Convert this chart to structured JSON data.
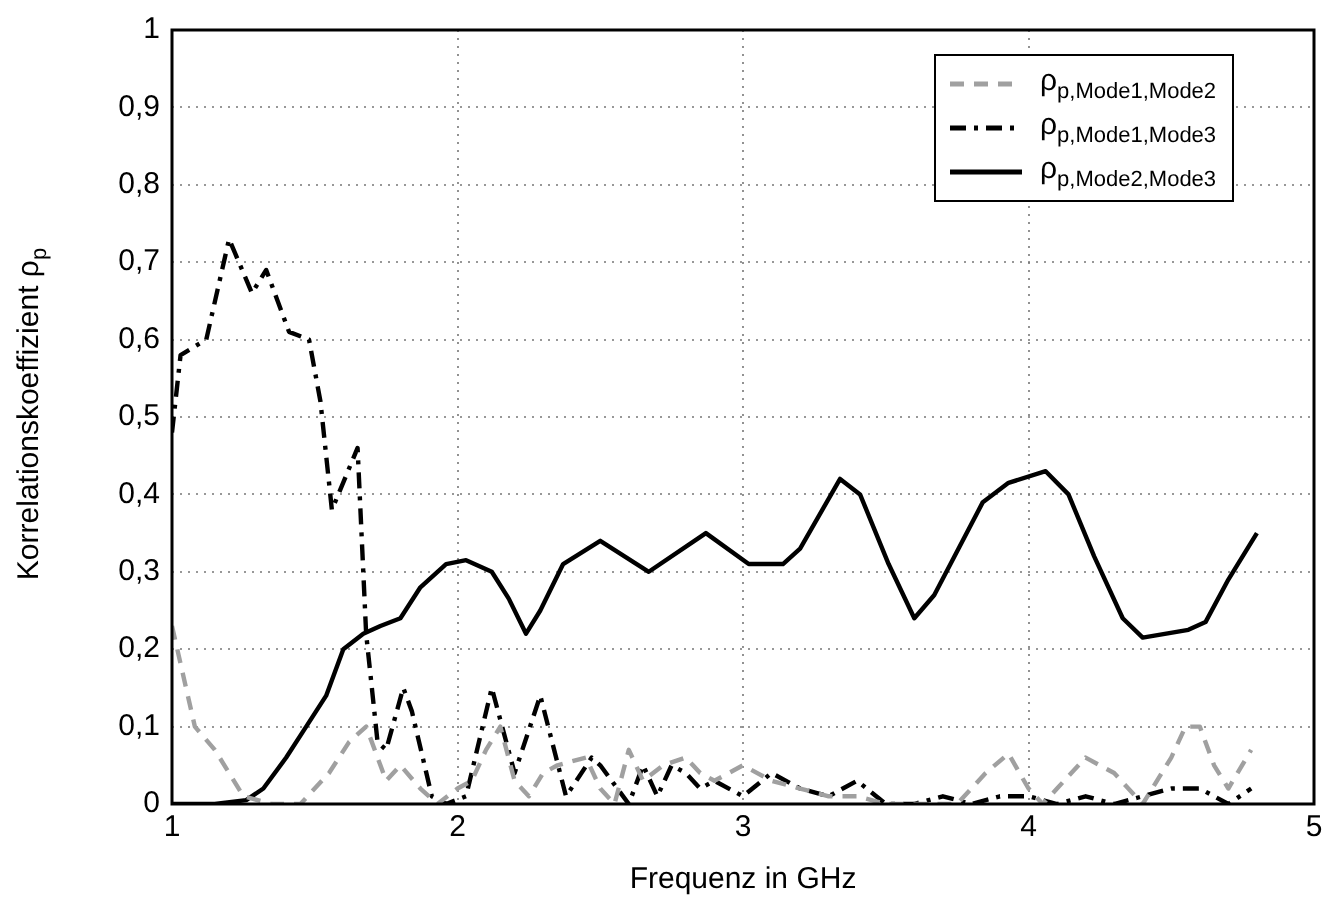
{
  "chart_data": {
    "type": "line",
    "xlabel": "Frequenz in GHz",
    "ylabel": "Korrelationskoeffizient ρ$_{p}$",
    "xlim": [
      1,
      5
    ],
    "xticks": [
      1,
      2,
      3,
      4,
      5
    ],
    "ylim": [
      0,
      1
    ],
    "yticks": [
      0,
      {
        "value": 0.1,
        "label": "0,1"
      },
      {
        "value": 0.2,
        "label": "0,2"
      },
      {
        "value": 0.3,
        "label": "0,3"
      },
      {
        "value": 0.4,
        "label": "0,4"
      },
      {
        "value": 0.5,
        "label": "0,5"
      },
      {
        "value": 0.6,
        "label": "0,6"
      },
      {
        "value": 0.7,
        "label": "0,7"
      },
      {
        "value": 0.8,
        "label": "0,8"
      },
      {
        "value": 0.9,
        "label": "0,9"
      },
      1
    ],
    "grid": true,
    "legend": "top right",
    "marker": "none",
    "series": [
      {
        "name": "ρ$_{p,Mode1,Mode2}$",
        "color": "#a0a0a0",
        "line_style": "dashed",
        "x": [
          1.0,
          1.08,
          1.15,
          1.25,
          1.35,
          1.45,
          1.55,
          1.62,
          1.68,
          1.75,
          1.8,
          1.87,
          1.93,
          2.0,
          2.05,
          2.1,
          2.15,
          2.2,
          2.25,
          2.3,
          2.35,
          2.45,
          2.5,
          2.55,
          2.6,
          2.65,
          2.72,
          2.8,
          2.85,
          2.9,
          3.0,
          3.1,
          3.2,
          3.3,
          3.4,
          3.5,
          3.6,
          3.7,
          3.75,
          3.85,
          3.93,
          4.0,
          4.05,
          4.1,
          4.2,
          4.3,
          4.4,
          4.5,
          4.55,
          4.6,
          4.65,
          4.7,
          4.78
        ],
        "values": [
          0.23,
          0.1,
          0.07,
          0.01,
          0.0,
          0.0,
          0.04,
          0.08,
          0.1,
          0.03,
          0.05,
          0.02,
          0.0,
          0.02,
          0.03,
          0.07,
          0.1,
          0.03,
          0.01,
          0.04,
          0.05,
          0.06,
          0.02,
          0.0,
          0.07,
          0.03,
          0.05,
          0.06,
          0.04,
          0.03,
          0.05,
          0.03,
          0.02,
          0.01,
          0.01,
          0.0,
          0.0,
          0.0,
          0.0,
          0.04,
          0.065,
          0.02,
          0.0,
          0.02,
          0.06,
          0.04,
          0.0,
          0.06,
          0.1,
          0.1,
          0.05,
          0.02,
          0.07
        ]
      },
      {
        "name": "ρ$_{p,Mode1,Mode3}$",
        "color": "#000000",
        "line_style": "dashdot",
        "x": [
          1.0,
          1.03,
          1.12,
          1.2,
          1.28,
          1.33,
          1.41,
          1.48,
          1.52,
          1.56,
          1.65,
          1.68,
          1.72,
          1.75,
          1.81,
          1.84,
          1.91,
          1.96,
          2.03,
          2.12,
          2.2,
          2.29,
          2.38,
          2.47,
          2.5,
          2.6,
          2.65,
          2.7,
          2.75,
          2.8,
          2.85,
          2.9,
          3.0,
          3.1,
          3.2,
          3.3,
          3.4,
          3.5,
          3.6,
          3.7,
          3.8,
          3.9,
          4.0,
          4.1,
          4.2,
          4.3,
          4.4,
          4.5,
          4.6,
          4.7,
          4.78
        ],
        "values": [
          0.48,
          0.58,
          0.6,
          0.73,
          0.66,
          0.69,
          0.61,
          0.6,
          0.52,
          0.38,
          0.46,
          0.22,
          0.08,
          0.07,
          0.15,
          0.12,
          0.01,
          0.0,
          0.01,
          0.15,
          0.04,
          0.14,
          0.01,
          0.06,
          0.05,
          0.0,
          0.05,
          0.01,
          0.05,
          0.04,
          0.02,
          0.03,
          0.01,
          0.04,
          0.02,
          0.01,
          0.03,
          0.0,
          0.0,
          0.01,
          0.0,
          0.01,
          0.01,
          0.0,
          0.01,
          0.0,
          0.01,
          0.02,
          0.02,
          0.0,
          0.02
        ]
      },
      {
        "name": "ρ$_{p,Mode2,Mode3}$",
        "color": "#000000",
        "line_style": "solid",
        "x": [
          1.0,
          1.15,
          1.26,
          1.32,
          1.4,
          1.47,
          1.54,
          1.6,
          1.67,
          1.73,
          1.8,
          1.87,
          1.96,
          2.03,
          2.12,
          2.18,
          2.24,
          2.29,
          2.37,
          2.5,
          2.67,
          2.87,
          3.02,
          3.14,
          3.2,
          3.34,
          3.41,
          3.51,
          3.6,
          3.67,
          3.84,
          3.93,
          4.06,
          4.14,
          4.23,
          4.33,
          4.4,
          4.56,
          4.62,
          4.7,
          4.8
        ],
        "values": [
          0.0,
          0.0,
          0.005,
          0.02,
          0.06,
          0.1,
          0.14,
          0.2,
          0.22,
          0.23,
          0.24,
          0.28,
          0.31,
          0.315,
          0.3,
          0.265,
          0.22,
          0.25,
          0.31,
          0.34,
          0.3,
          0.35,
          0.31,
          0.31,
          0.33,
          0.42,
          0.4,
          0.31,
          0.24,
          0.27,
          0.39,
          0.415,
          0.43,
          0.4,
          0.32,
          0.24,
          0.215,
          0.225,
          0.235,
          0.29,
          0.35
        ]
      }
    ]
  }
}
